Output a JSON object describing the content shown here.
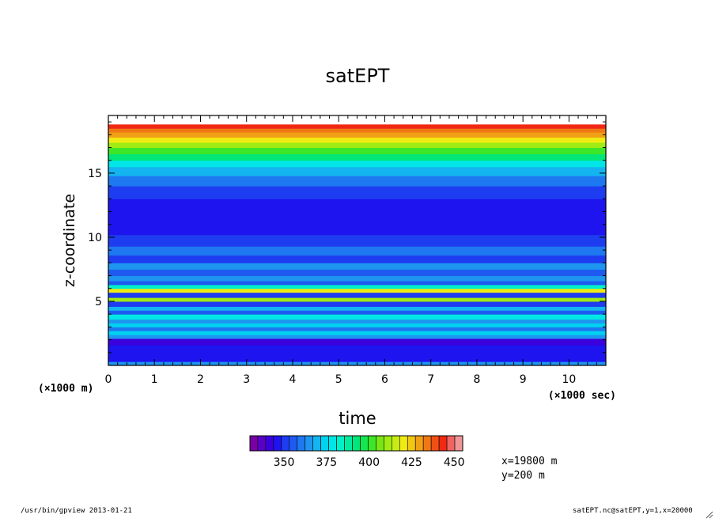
{
  "chart_data": {
    "type": "heatmap",
    "title": "satEPT",
    "xlabel": "time",
    "ylabel": "z-coordinate",
    "x_unit_label": "(×1000 sec)",
    "y_unit_label": "(×1000 m)",
    "xlim": [
      0,
      10.8
    ],
    "ylim": [
      0,
      19.5
    ],
    "x_ticks": [
      "0",
      "1",
      "2",
      "3",
      "4",
      "5",
      "6",
      "7",
      "8",
      "9",
      "10"
    ],
    "y_ticks": [
      "5",
      "10",
      "15"
    ],
    "colorbar": {
      "labels": [
        "350",
        "375",
        "400",
        "425",
        "450"
      ],
      "min": 330,
      "max": 455,
      "interval": 5,
      "colors": [
        "#7a00a6",
        "#5a00c8",
        "#3c00dc",
        "#1e14f0",
        "#1e3cf0",
        "#1e5af0",
        "#1e78f0",
        "#1e96f0",
        "#14b4f0",
        "#00d2f0",
        "#00e6e6",
        "#00f0c8",
        "#00eba0",
        "#00e678",
        "#14e650",
        "#3ce628",
        "#78e614",
        "#a0eb14",
        "#c8eb14",
        "#f0eb14",
        "#f0c814",
        "#f0a014",
        "#f07814",
        "#f05014",
        "#f02814",
        "#f06464",
        "#f09696"
      ]
    },
    "bands": [
      {
        "z0": 0.0,
        "z1": 0.3,
        "value": 366
      },
      {
        "z0": 0.3,
        "z1": 1.6,
        "value": 348
      },
      {
        "z0": 1.6,
        "z1": 2.1,
        "value": 344
      },
      {
        "z0": 2.1,
        "z1": 2.4,
        "value": 368
      },
      {
        "z0": 2.4,
        "z1": 2.7,
        "value": 378
      },
      {
        "z0": 2.7,
        "z1": 3.0,
        "value": 364
      },
      {
        "z0": 3.0,
        "z1": 3.3,
        "value": 376
      },
      {
        "z0": 3.3,
        "z1": 3.6,
        "value": 366
      },
      {
        "z0": 3.6,
        "z1": 4.0,
        "value": 380
      },
      {
        "z0": 4.0,
        "z1": 4.3,
        "value": 356
      },
      {
        "z0": 4.3,
        "z1": 4.6,
        "value": 370
      },
      {
        "z0": 4.6,
        "z1": 5.0,
        "value": 352
      },
      {
        "z0": 5.0,
        "z1": 5.3,
        "value": 418
      },
      {
        "z0": 5.3,
        "z1": 5.7,
        "value": 352
      },
      {
        "z0": 5.7,
        "z1": 6.0,
        "value": 425
      },
      {
        "z0": 6.0,
        "z1": 6.3,
        "value": 388
      },
      {
        "z0": 6.3,
        "z1": 6.6,
        "value": 358
      },
      {
        "z0": 6.6,
        "z1": 7.0,
        "value": 368
      },
      {
        "z0": 7.0,
        "z1": 7.5,
        "value": 356
      },
      {
        "z0": 7.5,
        "z1": 8.0,
        "value": 366
      },
      {
        "z0": 8.0,
        "z1": 8.6,
        "value": 354
      },
      {
        "z0": 8.6,
        "z1": 9.3,
        "value": 362
      },
      {
        "z0": 9.3,
        "z1": 10.2,
        "value": 352
      },
      {
        "z0": 10.2,
        "z1": 11.0,
        "value": 348
      },
      {
        "z0": 11.0,
        "z1": 12.0,
        "value": 346
      },
      {
        "z0": 12.0,
        "z1": 13.0,
        "value": 348
      },
      {
        "z0": 13.0,
        "z1": 14.0,
        "value": 353
      },
      {
        "z0": 14.0,
        "z1": 14.8,
        "value": 362
      },
      {
        "z0": 14.8,
        "z1": 15.5,
        "value": 372
      },
      {
        "z0": 15.5,
        "z1": 16.0,
        "value": 384
      },
      {
        "z0": 16.0,
        "z1": 16.5,
        "value": 396
      },
      {
        "z0": 16.5,
        "z1": 17.0,
        "value": 406
      },
      {
        "z0": 17.0,
        "z1": 17.4,
        "value": 416
      },
      {
        "z0": 17.4,
        "z1": 17.8,
        "value": 426
      },
      {
        "z0": 17.8,
        "z1": 18.2,
        "value": 436
      },
      {
        "z0": 18.2,
        "z1": 18.5,
        "value": 444
      },
      {
        "z0": 18.5,
        "z1": 18.8,
        "value": 450
      }
    ]
  },
  "info": {
    "x_fixed": "x=19800 m",
    "y_fixed": "y=200 m"
  },
  "footer": {
    "left": "/usr/bin/gpview  2013-01-21",
    "right": "satEPT.nc@satEPT,y=1,x=20000"
  }
}
